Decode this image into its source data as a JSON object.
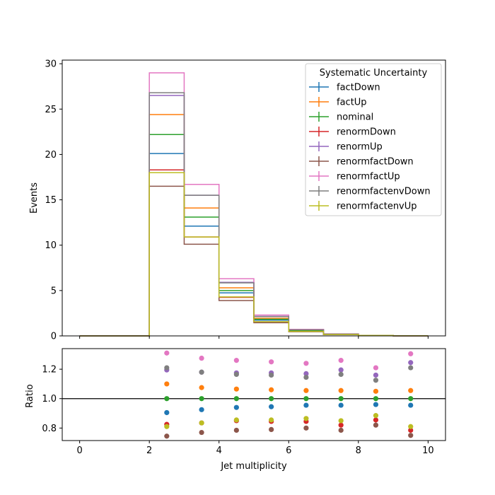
{
  "chart_data": [
    {
      "type": "line",
      "style": "step",
      "ylabel": "Events",
      "xlabel": "",
      "xlim": [
        -0.5,
        10.5
      ],
      "ylim": [
        0,
        30.4
      ],
      "x_ticks": [
        "0",
        "2",
        "4",
        "6",
        "8",
        "10"
      ],
      "y_ticks": [
        "0",
        "5",
        "10",
        "15",
        "20",
        "25",
        "30"
      ],
      "bin_edges": [
        0,
        1,
        2,
        3,
        4,
        5,
        6,
        7,
        8,
        9,
        10
      ],
      "legend": {
        "title": "Systematic Uncertainty",
        "placement": "top-right"
      },
      "series": [
        {
          "name": "factDown",
          "color": "#1f77b4",
          "values": [
            0,
            0,
            20.1,
            12.1,
            4.75,
            1.73,
            0.55,
            0.17,
            0.05,
            0.01
          ]
        },
        {
          "name": "factUp",
          "color": "#ff7f0e",
          "values": [
            0,
            0,
            24.4,
            14.1,
            5.3,
            1.94,
            0.61,
            0.185,
            0.055,
            0.011
          ]
        },
        {
          "name": "nominal",
          "color": "#2ca02c",
          "values": [
            0,
            0,
            22.2,
            13.1,
            5.0,
            1.83,
            0.58,
            0.176,
            0.052,
            0.01
          ]
        },
        {
          "name": "renormDown",
          "color": "#d62728",
          "values": [
            0,
            0,
            18.3,
            10.9,
            4.25,
            1.54,
            0.49,
            0.144,
            0.045,
            0.008
          ]
        },
        {
          "name": "renormUp",
          "color": "#9467bd",
          "values": [
            0,
            0,
            26.5,
            15.5,
            5.9,
            2.15,
            0.68,
            0.21,
            0.061,
            0.012
          ]
        },
        {
          "name": "renormfactDown",
          "color": "#8c564b",
          "values": [
            0,
            0,
            16.5,
            10.1,
            3.9,
            1.45,
            0.46,
            0.138,
            0.043,
            0.008
          ]
        },
        {
          "name": "renormfactUp",
          "color": "#e377c2",
          "values": [
            0,
            0,
            29.0,
            16.7,
            6.3,
            2.3,
            0.72,
            0.222,
            0.063,
            0.013
          ]
        },
        {
          "name": "renormfactenvDown",
          "color": "#7f7f7f",
          "values": [
            0,
            0,
            26.8,
            15.5,
            5.85,
            2.13,
            0.67,
            0.205,
            0.059,
            0.012
          ]
        },
        {
          "name": "renormfactenvUp",
          "color": "#bcbd22",
          "values": [
            0,
            0,
            18.0,
            10.9,
            4.3,
            1.57,
            0.5,
            0.15,
            0.046,
            0.008
          ]
        }
      ]
    },
    {
      "type": "scatter",
      "ylabel": "Ratio",
      "xlabel": "Jet multiplicity",
      "xlim": [
        -0.5,
        10.5
      ],
      "ylim": [
        0.715,
        1.34
      ],
      "x_ticks": [
        "0",
        "2",
        "4",
        "6",
        "8",
        "10"
      ],
      "y_ticks": [
        "0.8",
        "1.0",
        "1.2"
      ],
      "reference_line": 1.0,
      "x": [
        2.5,
        3.5,
        4.5,
        5.5,
        6.5,
        7.5,
        8.5,
        9.5
      ],
      "series": [
        {
          "name": "factDown",
          "color": "#1f77b4",
          "values": [
            0.905,
            0.925,
            0.94,
            0.945,
            0.955,
            0.955,
            0.96,
            0.955
          ]
        },
        {
          "name": "factUp",
          "color": "#ff7f0e",
          "values": [
            1.1,
            1.075,
            1.065,
            1.06,
            1.055,
            1.055,
            1.05,
            1.055
          ]
        },
        {
          "name": "nominal",
          "color": "#2ca02c",
          "values": [
            1.0,
            1.0,
            1.0,
            1.0,
            1.0,
            1.0,
            1.0,
            1.0
          ]
        },
        {
          "name": "renormDown",
          "color": "#d62728",
          "values": [
            0.825,
            0.835,
            0.85,
            0.845,
            0.845,
            0.82,
            0.855,
            0.785
          ]
        },
        {
          "name": "renormUp",
          "color": "#9467bd",
          "values": [
            1.195,
            1.18,
            1.175,
            1.175,
            1.17,
            1.195,
            1.16,
            1.245
          ]
        },
        {
          "name": "renormfactDown",
          "color": "#8c564b",
          "values": [
            0.745,
            0.77,
            0.785,
            0.79,
            0.8,
            0.785,
            0.82,
            0.75
          ]
        },
        {
          "name": "renormfactUp",
          "color": "#e377c2",
          "values": [
            1.31,
            1.275,
            1.26,
            1.25,
            1.24,
            1.26,
            1.21,
            1.305
          ]
        },
        {
          "name": "renormfactenvDown",
          "color": "#7f7f7f",
          "values": [
            1.21,
            1.18,
            1.165,
            1.16,
            1.145,
            1.165,
            1.125,
            1.21
          ]
        },
        {
          "name": "renormfactenvUp",
          "color": "#bcbd22",
          "values": [
            0.81,
            0.835,
            0.855,
            0.855,
            0.865,
            0.85,
            0.885,
            0.81
          ]
        }
      ]
    }
  ]
}
